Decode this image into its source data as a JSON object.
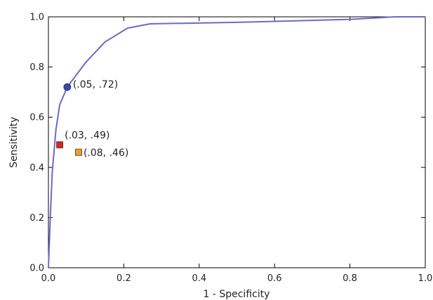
{
  "chart_data": {
    "type": "line",
    "xlabel": "1 - Specificity",
    "ylabel": "Sensitivity",
    "xlim": [
      0.0,
      1.0
    ],
    "ylim": [
      0.0,
      1.0
    ],
    "xticks": [
      "0.0",
      "0.2",
      "0.4",
      "0.6",
      "0.8",
      "1.0"
    ],
    "yticks": [
      "0.0",
      "0.2",
      "0.4",
      "0.6",
      "0.8",
      "1.0"
    ],
    "grid": false,
    "series": [
      {
        "color": "#6a6ac8",
        "points": [
          [
            0.0,
            0.0
          ],
          [
            0.005,
            0.2
          ],
          [
            0.01,
            0.38
          ],
          [
            0.02,
            0.55
          ],
          [
            0.03,
            0.65
          ],
          [
            0.05,
            0.72
          ],
          [
            0.1,
            0.82
          ],
          [
            0.15,
            0.9
          ],
          [
            0.21,
            0.955
          ],
          [
            0.27,
            0.972
          ],
          [
            0.5,
            0.978
          ],
          [
            0.8,
            0.99
          ],
          [
            0.92,
            1.0
          ],
          [
            1.0,
            1.0
          ]
        ]
      }
    ],
    "markers": [
      {
        "x": 0.05,
        "y": 0.72,
        "shape": "circle",
        "color": "#3b4aa8",
        "label": "(.05, .72)"
      },
      {
        "x": 0.03,
        "y": 0.49,
        "shape": "square",
        "color": "#e02020",
        "label": "(.03, .49)"
      },
      {
        "x": 0.08,
        "y": 0.46,
        "shape": "square",
        "color": "#f0a020",
        "label": "(.08, .46)"
      }
    ]
  }
}
